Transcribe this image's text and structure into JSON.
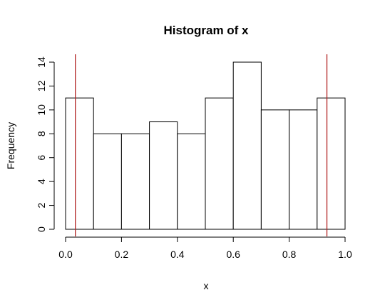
{
  "chart_data": {
    "type": "bar",
    "title": "Histogram of x",
    "xlabel": "x",
    "ylabel": "Frequency",
    "bins": [
      {
        "start": 0.0,
        "end": 0.1,
        "count": 11
      },
      {
        "start": 0.1,
        "end": 0.2,
        "count": 8
      },
      {
        "start": 0.2,
        "end": 0.3,
        "count": 8
      },
      {
        "start": 0.3,
        "end": 0.4,
        "count": 9
      },
      {
        "start": 0.4,
        "end": 0.5,
        "count": 8
      },
      {
        "start": 0.5,
        "end": 0.6,
        "count": 11
      },
      {
        "start": 0.6,
        "end": 0.7,
        "count": 14
      },
      {
        "start": 0.7,
        "end": 0.8,
        "count": 10
      },
      {
        "start": 0.8,
        "end": 0.9,
        "count": 10
      },
      {
        "start": 0.9,
        "end": 1.0,
        "count": 11
      }
    ],
    "xlim": [
      0,
      1
    ],
    "ylim": [
      0,
      14
    ],
    "x_ticks": [
      "0.0",
      "0.2",
      "0.4",
      "0.6",
      "0.8",
      "1.0"
    ],
    "y_ticks": [
      "0",
      "2",
      "4",
      "6",
      "8",
      "10",
      "12",
      "14"
    ],
    "vertical_lines": [
      {
        "x": 0.035,
        "color": "#b22222"
      },
      {
        "x": 0.935,
        "color": "#b22222"
      }
    ],
    "bar_fill": "#ffffff",
    "bar_stroke": "#000000",
    "grid": false,
    "legend": "none"
  }
}
